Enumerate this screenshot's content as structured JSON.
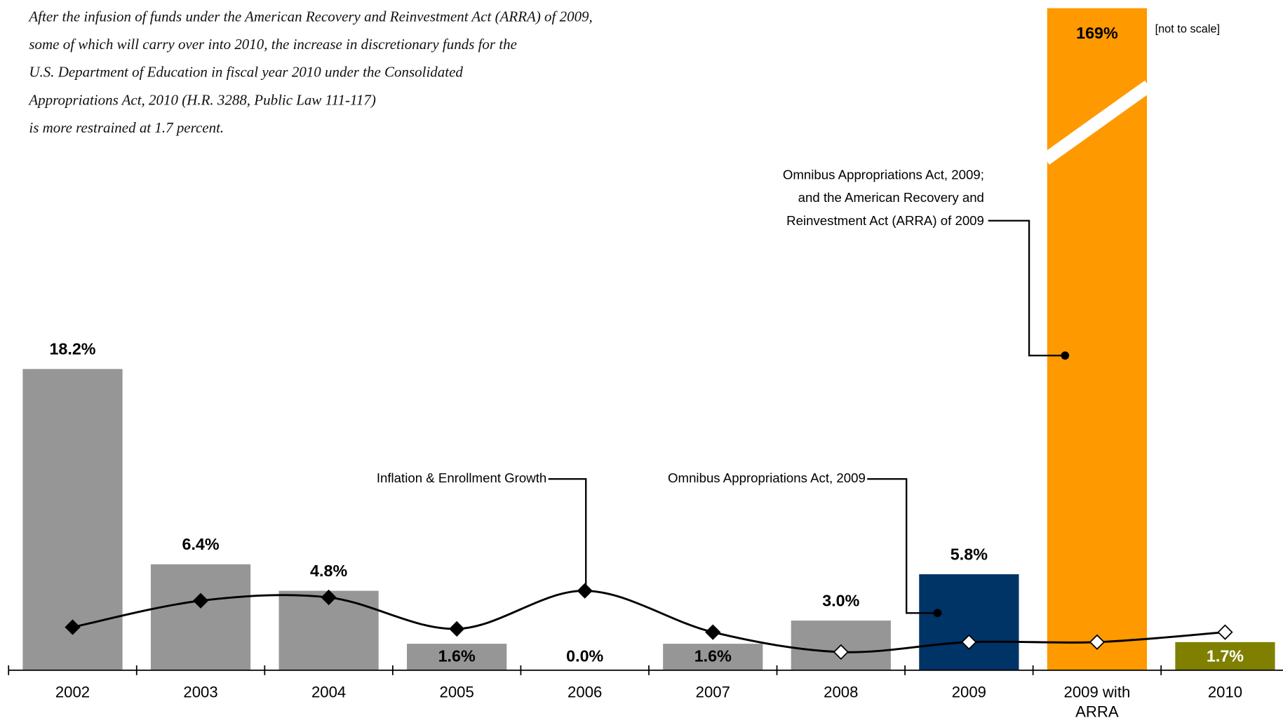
{
  "chart_data": {
    "type": "bar",
    "note": [
      "After the infusion of funds under the American Recovery and Reinvestment Act (ARRA) of 2009,",
      "some of which will carry over into 2010, the increase in discretionary funds for the",
      "U.S. Department of Education in fiscal year 2010 under the Consolidated",
      "Appropriations Act, 2010 (H.R. 3288, Public Law 111-117)",
      "is more restrained at 1.7 percent."
    ],
    "categories": [
      "2002",
      "2003",
      "2004",
      "2005",
      "2006",
      "2007",
      "2008",
      "2009",
      "2009 with ARRA",
      "2010"
    ],
    "values": [
      18.2,
      6.4,
      4.8,
      1.6,
      0,
      1.6,
      3.0,
      5.8,
      169,
      1.7
    ],
    "value_labels": [
      "18.2%",
      "6.4%",
      "4.8%",
      "1.6%",
      "0.0%",
      "1.6%",
      "3.0%",
      "5.8%",
      "169%",
      "1.7%"
    ],
    "colors": [
      "#969696",
      "#969696",
      "#969696",
      "#969696",
      "#969696",
      "#969696",
      "#969696",
      "#003366",
      "#ff9900",
      "#808000"
    ],
    "value_label_colors": [
      "#000",
      "#000",
      "#000",
      "#000",
      "#000",
      "#000",
      "#000",
      "#000",
      "#000",
      "#fff"
    ],
    "line": {
      "name": "Inflation & Enrollment Growth",
      "color": "#000",
      "values": [
        2.6,
        4.2,
        4.4,
        2.5,
        4.8,
        2.3,
        1.1,
        1.7,
        1.7,
        2.3
      ]
    },
    "annotations": [
      [
        "Omnibus Appropriations Act, 2009"
      ],
      [
        "Omnibus Appropriations Act, 2009;",
        "and the American Recovery and",
        "Reinvestment Act (ARRA) of 2009"
      ]
    ],
    "scale_note": "[not to scale]",
    "ylim": [
      0,
      40
    ]
  }
}
